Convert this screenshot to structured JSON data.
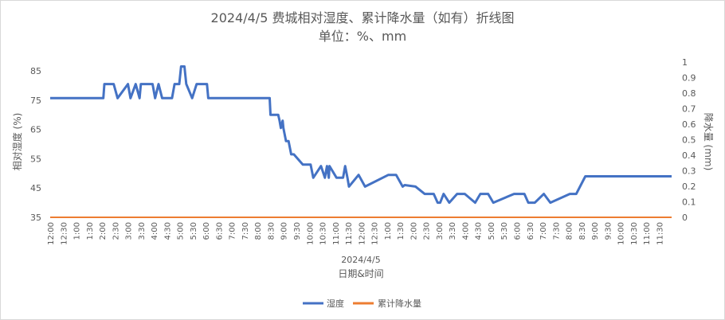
{
  "chart_data": {
    "type": "line",
    "title": "2024/4/5 费城相对湿度、累计降水量（如有）折线图",
    "subtitle": "单位：%、mm",
    "xlabel": "日期&时间",
    "date_label": "2024/4/5",
    "y_left_label": "相对湿度 (%)",
    "y_right_label": "降水量 (mm)",
    "y_left_ticks": [
      "35",
      "45",
      "55",
      "65",
      "75",
      "85"
    ],
    "y_left_range": [
      35,
      88
    ],
    "y_right_ticks": [
      "0",
      "0.1",
      "0.2",
      "0.3",
      "0.4",
      "0.5",
      "0.6",
      "0.7",
      "0.8",
      "0.9",
      "1"
    ],
    "y_right_range": [
      0,
      1
    ],
    "x_ticks": [
      "12:00",
      "12:30",
      "1:00",
      "1:30",
      "2:00",
      "2:30",
      "3:00",
      "3:30",
      "4:00",
      "4:30",
      "5:00",
      "5:30",
      "6:00",
      "6:30",
      "7:00",
      "7:30",
      "8:00",
      "8:30",
      "9:00",
      "9:30",
      "10:00",
      "10:30",
      "11:00",
      "11:30",
      "12:00",
      "12:30",
      "1:00",
      "1:30",
      "2:00",
      "2:30",
      "3:00",
      "3:30",
      "4:00",
      "4:30",
      "5:00",
      "5:30",
      "6:00",
      "6:30",
      "7:00",
      "7:30",
      "8:00",
      "8:30",
      "9:00",
      "9:30",
      "10:00",
      "10:30",
      "11:00",
      "11:30"
    ],
    "x_range_hours": [
      0,
      23.98
    ],
    "legend_position": "bottom",
    "series": [
      {
        "name": "湿度",
        "axis": "left",
        "color": "#4472C4",
        "x_hours": [
          0,
          1.02,
          2.05,
          2.09,
          2.45,
          2.6,
          3.0,
          3.1,
          3.3,
          3.45,
          3.5,
          3.95,
          4.05,
          4.18,
          4.32,
          4.7,
          4.8,
          4.98,
          5.05,
          5.18,
          5.25,
          5.48,
          5.65,
          6.05,
          6.1,
          8.47,
          8.5,
          8.8,
          8.85,
          8.9,
          8.97,
          9.0,
          9.1,
          9.2,
          9.3,
          9.4,
          9.75,
          10.05,
          10.15,
          10.45,
          10.6,
          10.68,
          10.75,
          10.78,
          11.05,
          11.3,
          11.38,
          11.47,
          11.53,
          11.9,
          12.15,
          13.05,
          13.35,
          13.6,
          13.68,
          14.1,
          14.45,
          14.8,
          14.95,
          15.05,
          15.18,
          15.4,
          15.7,
          16.0,
          16.4,
          16.6,
          16.9,
          17.1,
          17.9,
          18.3,
          18.45,
          18.7,
          19.05,
          19.3,
          20.05,
          20.15,
          20.3,
          20.65,
          23.98
        ],
        "y": [
          75.7,
          75.7,
          75.7,
          80.5,
          80.5,
          75.7,
          80.5,
          75.7,
          80.5,
          75.7,
          80.5,
          80.5,
          75.7,
          80.5,
          75.7,
          75.7,
          80.5,
          80.5,
          86.5,
          86.5,
          80.5,
          75.7,
          80.5,
          80.5,
          75.7,
          75.7,
          70,
          70,
          68,
          65.5,
          68,
          65.5,
          61,
          61,
          56.5,
          56.5,
          53,
          53,
          48.5,
          52.5,
          48.5,
          52.5,
          48.5,
          52.5,
          48.5,
          48.5,
          52.5,
          48.5,
          45.5,
          49.5,
          45.5,
          49.5,
          49.5,
          45.5,
          46,
          45.5,
          43,
          43,
          40,
          40,
          43,
          40,
          43,
          43,
          40,
          43,
          43,
          40,
          43,
          43,
          40,
          40,
          43,
          40,
          43,
          43,
          43,
          49,
          49
        ]
      },
      {
        "name": "累计降水量",
        "axis": "right",
        "color": "#ED7D31",
        "x_hours": [
          0,
          23.98
        ],
        "y": [
          0,
          0
        ]
      }
    ]
  }
}
